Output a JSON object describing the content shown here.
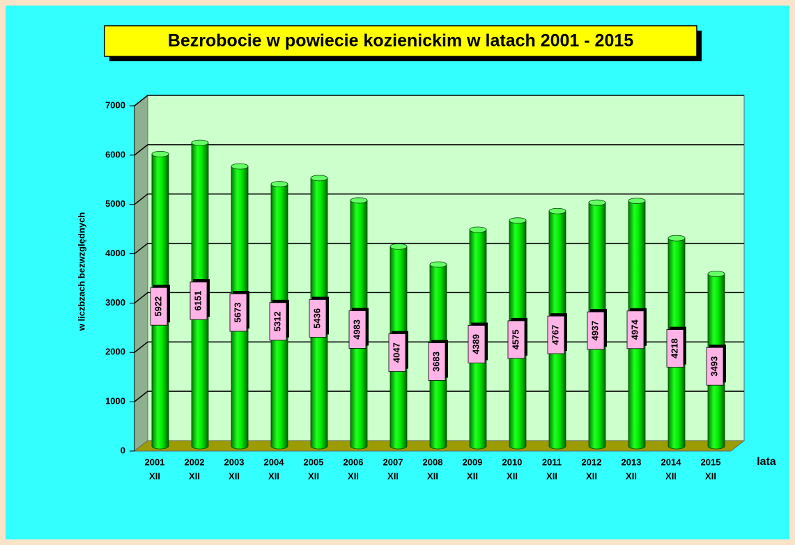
{
  "chart_data": {
    "type": "bar",
    "title": "Bezrobocie w powiecie kozienickim w latach 2001 -  2015",
    "y_label": "w liczbzach bezwzględnych",
    "x_label": "lata",
    "categories": [
      [
        "2001",
        "XII"
      ],
      [
        "2002",
        "XII"
      ],
      [
        "2003",
        "XII"
      ],
      [
        "2004",
        "XII"
      ],
      [
        "2005",
        "XII"
      ],
      [
        "2006",
        "XII"
      ],
      [
        "2007",
        "XII"
      ],
      [
        "2008",
        "XII"
      ],
      [
        "2009",
        "XII"
      ],
      [
        "2010",
        "XII"
      ],
      [
        "2011",
        "XII"
      ],
      [
        "2012",
        "XII"
      ],
      [
        "2013",
        "XII"
      ],
      [
        "2014",
        "XII"
      ],
      [
        "2015",
        "XII"
      ]
    ],
    "values": [
      5922,
      6151,
      5673,
      5312,
      5436,
      4983,
      4047,
      3683,
      4389,
      4575,
      4767,
      4937,
      4974,
      4218,
      3493
    ],
    "color": "#00ee00",
    "ylim": [
      0,
      7000
    ],
    "yticks": [
      0,
      1000,
      2000,
      3000,
      4000,
      5000,
      6000,
      7000
    ],
    "grid": true
  }
}
